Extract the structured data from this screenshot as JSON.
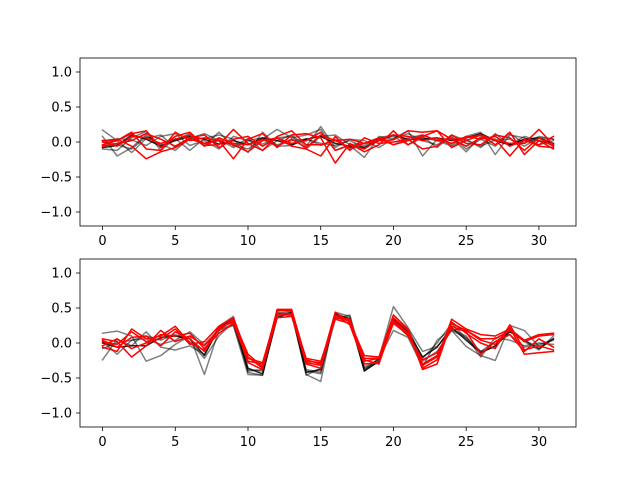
{
  "chart_data": [
    {
      "type": "line",
      "title": "",
      "xlabel": "",
      "ylabel": "",
      "xlim": [
        -1.55,
        32.55
      ],
      "ylim": [
        -1.2,
        1.2
      ],
      "xticks": [
        0,
        5,
        10,
        15,
        20,
        25,
        30
      ],
      "yticks": [
        -1.0,
        -0.5,
        0.0,
        0.5,
        1.0
      ],
      "x": [
        0,
        1,
        2,
        3,
        4,
        5,
        6,
        7,
        8,
        9,
        10,
        11,
        12,
        13,
        14,
        15,
        16,
        17,
        18,
        19,
        20,
        21,
        22,
        23,
        24,
        25,
        26,
        27,
        28,
        29,
        30,
        31
      ],
      "series": [
        {
          "color": "#000000",
          "alpha": 0.5,
          "values": [
            0.17,
            0.02,
            -0.15,
            0.05,
            0.1,
            -0.08,
            0.05,
            0.12,
            0.02,
            -0.04,
            -0.1,
            0.04,
            0.18,
            0.06,
            0.1,
            0.18,
            -0.12,
            -0.05,
            -0.22,
            0.08,
            0.04,
            0.12,
            0.02,
            -0.04,
            0.08,
            -0.1,
            0.04,
            -0.06,
            0.12,
            -0.02,
            0.08,
            0.04
          ]
        },
        {
          "color": "#000000",
          "alpha": 0.5,
          "values": [
            0.08,
            -0.2,
            -0.08,
            0.1,
            -0.05,
            0.03,
            0.12,
            -0.05,
            0.14,
            -0.06,
            0.05,
            -0.12,
            0.02,
            0.1,
            -0.06,
            0.22,
            -0.08,
            0.04,
            0.02,
            -0.08,
            0.05,
            0.16,
            -0.2,
            0.04,
            -0.04,
            0.08,
            0.14,
            -0.18,
            0.1,
            0.06,
            -0.04,
            0.02
          ]
        },
        {
          "color": "#000000",
          "alpha": 0.5,
          "values": [
            -0.1,
            -0.12,
            0.06,
            0.15,
            -0.12,
            0.05,
            -0.12,
            0.05,
            0.1,
            0.04,
            -0.15,
            0.14,
            -0.06,
            -0.05,
            0.05,
            -0.05,
            0.04,
            -0.1,
            -0.05,
            0.04,
            0.08,
            -0.04,
            0.06,
            0.02,
            -0.06,
            0.04,
            -0.08,
            0.12,
            -0.05,
            0.04,
            0.02,
            -0.05
          ]
        },
        {
          "color": "#000000",
          "alpha": 0.5,
          "values": [
            -0.05,
            0.05,
            0.03,
            -0.05,
            0.08,
            0.12,
            -0.05,
            0.02,
            -0.1,
            0.08,
            0.02,
            -0.03,
            0.06,
            0.08,
            -0.1,
            0.08,
            0.1,
            -0.04,
            -0.02,
            0.06,
            0.1,
            0.02,
            0.08,
            -0.08,
            0.1,
            0.02,
            -0.06,
            0.03,
            0.04,
            -0.06,
            0.06,
            0.04
          ]
        },
        {
          "color": "#000000",
          "alpha": 0.5,
          "values": [
            0.02,
            -0.04,
            -0.1,
            0.08,
            -0.03,
            -0.12,
            0.06,
            -0.02,
            0.04,
            -0.08,
            0.02,
            0.06,
            -0.04,
            0.02,
            0.04,
            -0.02,
            -0.05,
            0.02,
            -0.08,
            0.04,
            -0.04,
            0.06,
            0.1,
            0.02,
            0.06,
            -0.14,
            0.08,
            0.02,
            -0.04,
            0.08,
            0.02,
            -0.03
          ]
        },
        {
          "color": "#000000",
          "alpha": 0.85,
          "values": [
            -0.08,
            -0.05,
            0.1,
            0.04,
            -0.06,
            0.02,
            0.08,
            0.04,
            -0.03,
            0.02,
            -0.04,
            0.06,
            0.02,
            -0.04,
            0.04,
            0.08,
            -0.02,
            -0.06,
            -0.08,
            0.02,
            0.1,
            0.04,
            0.04,
            0.06,
            0.02,
            0.06,
            0.12,
            0.02,
            -0.04,
            0.04,
            0.06,
            -0.02
          ]
        },
        {
          "color": "#ff0000",
          "alpha": 1.0,
          "values": [
            0.02,
            0.02,
            0.12,
            0.16,
            -0.08,
            0.08,
            0.14,
            -0.05,
            -0.04,
            0.18,
            -0.02,
            -0.12,
            0.08,
            0.16,
            -0.04,
            -0.04,
            0.02,
            0.04,
            -0.02,
            0.02,
            0.03,
            0.16,
            0.14,
            0.16,
            0.04,
            0.06,
            0.1,
            0.02,
            -0.02,
            -0.02,
            0.18,
            -0.04
          ]
        },
        {
          "color": "#ff0000",
          "alpha": 1.0,
          "values": [
            -0.04,
            0.02,
            0.14,
            -0.1,
            -0.12,
            0.14,
            0.02,
            0.06,
            0.02,
            -0.24,
            0.04,
            0.12,
            -0.08,
            0.1,
            0.12,
            0.06,
            -0.3,
            -0.02,
            -0.14,
            -0.04,
            0.16,
            -0.04,
            0.08,
            0.16,
            -0.08,
            0.02,
            0.1,
            -0.04,
            0.14,
            -0.18,
            0.02,
            -0.1
          ]
        },
        {
          "color": "#ff0000",
          "alpha": 1.0,
          "values": [
            0.02,
            0.04,
            -0.06,
            -0.24,
            -0.14,
            -0.08,
            0.04,
            -0.02,
            0.02,
            -0.04,
            -0.14,
            0.02,
            0.06,
            -0.06,
            -0.1,
            -0.2,
            0.08,
            -0.12,
            0.06,
            -0.02,
            0.0,
            0.04,
            -0.1,
            -0.06,
            0.1,
            -0.02,
            -0.04,
            0.1,
            0.06,
            -0.12,
            0.06,
            -0.06
          ]
        },
        {
          "color": "#ff0000",
          "alpha": 1.0,
          "values": [
            -0.06,
            -0.02,
            0.02,
            0.12,
            0.04,
            -0.06,
            0.06,
            0.1,
            -0.08,
            0.04,
            0.08,
            -0.06,
            0.06,
            -0.02,
            0.02,
            0.14,
            -0.12,
            -0.04,
            -0.1,
            0.04,
            0.1,
            0.08,
            0.02,
            0.06,
            -0.02,
            0.08,
            0.04,
            0.08,
            -0.06,
            0.02,
            -0.04,
            0.08
          ]
        },
        {
          "color": "#ff0000",
          "alpha": 1.0,
          "values": [
            0.0,
            -0.06,
            0.08,
            0.06,
            -0.02,
            0.04,
            0.1,
            -0.06,
            0.06,
            -0.02,
            -0.04,
            0.04,
            -0.06,
            0.04,
            -0.08,
            0.1,
            0.02,
            -0.08,
            -0.02,
            0.06,
            -0.04,
            0.02,
            0.1,
            0.02,
            0.04,
            -0.06,
            0.06,
            0.04,
            -0.2,
            0.04,
            -0.06,
            -0.08
          ]
        }
      ]
    },
    {
      "type": "line",
      "title": "",
      "xlabel": "",
      "ylabel": "",
      "xlim": [
        -1.55,
        32.55
      ],
      "ylim": [
        -1.2,
        1.2
      ],
      "xticks": [
        0,
        5,
        10,
        15,
        20,
        25,
        30
      ],
      "yticks": [
        -1.0,
        -0.5,
        0.0,
        0.5,
        1.0
      ],
      "x": [
        0,
        1,
        2,
        3,
        4,
        5,
        6,
        7,
        8,
        9,
        10,
        11,
        12,
        13,
        14,
        15,
        16,
        17,
        18,
        19,
        20,
        21,
        22,
        23,
        24,
        25,
        26,
        27,
        28,
        29,
        30,
        31
      ],
      "series": [
        {
          "color": "#000000",
          "alpha": 0.5,
          "values": [
            0.14,
            0.17,
            0.1,
            -0.26,
            -0.18,
            -0.02,
            0.1,
            -0.45,
            0.18,
            0.25,
            -0.45,
            -0.46,
            0.42,
            0.45,
            -0.45,
            -0.55,
            0.44,
            0.38,
            -0.4,
            -0.22,
            0.52,
            0.22,
            -0.12,
            -0.05,
            0.18,
            -0.05,
            -0.18,
            -0.25,
            0.25,
            0.18,
            -0.05,
            0.06
          ]
        },
        {
          "color": "#000000",
          "alpha": 0.5,
          "values": [
            -0.24,
            0.05,
            -0.04,
            0.16,
            -0.06,
            -0.1,
            -0.04,
            -0.16,
            0.24,
            0.38,
            -0.42,
            -0.46,
            0.4,
            0.42,
            -0.46,
            -0.36,
            0.4,
            0.36,
            -0.38,
            -0.22,
            0.18,
            0.08,
            -0.34,
            0.04,
            0.2,
            0.1,
            -0.2,
            0.08,
            0.04,
            -0.04,
            0.0,
            -0.02
          ]
        },
        {
          "color": "#000000",
          "alpha": 0.5,
          "values": [
            0.02,
            -0.16,
            0.04,
            0.1,
            0.04,
            0.12,
            0.02,
            -0.22,
            0.1,
            0.3,
            -0.4,
            -0.38,
            0.44,
            0.4,
            -0.38,
            -0.42,
            0.34,
            0.4,
            -0.36,
            -0.28,
            0.4,
            0.2,
            -0.22,
            0.0,
            0.28,
            0.06,
            -0.12,
            -0.06,
            0.2,
            0.02,
            -0.1,
            0.1
          ]
        },
        {
          "color": "#000000",
          "alpha": 0.5,
          "values": [
            -0.08,
            0.0,
            0.04,
            0.06,
            -0.02,
            0.04,
            0.16,
            -0.02,
            0.2,
            0.26,
            -0.38,
            -0.4,
            0.38,
            0.44,
            -0.4,
            -0.44,
            0.4,
            0.3,
            -0.34,
            -0.24,
            0.3,
            0.14,
            -0.26,
            -0.12,
            0.18,
            0.08,
            -0.12,
            0.02,
            0.12,
            -0.06,
            -0.02,
            0.04
          ]
        },
        {
          "color": "#000000",
          "alpha": 0.85,
          "values": [
            0.0,
            -0.06,
            -0.04,
            -0.04,
            0.08,
            0.1,
            0.06,
            -0.18,
            0.22,
            0.34,
            -0.36,
            -0.44,
            0.36,
            0.44,
            -0.42,
            -0.38,
            0.42,
            0.34,
            -0.4,
            -0.26,
            0.34,
            0.16,
            -0.2,
            -0.06,
            0.22,
            0.04,
            -0.14,
            -0.04,
            0.16,
            0.04,
            -0.08,
            0.06
          ]
        },
        {
          "color": "#ff0000",
          "alpha": 1.0,
          "values": [
            0.02,
            -0.02,
            0.16,
            0.02,
            0.06,
            0.2,
            -0.02,
            0.02,
            0.24,
            0.36,
            -0.2,
            -0.36,
            0.48,
            0.48,
            -0.24,
            -0.3,
            0.44,
            0.3,
            -0.18,
            -0.2,
            0.4,
            0.2,
            -0.36,
            -0.24,
            0.34,
            0.2,
            0.12,
            0.1,
            0.2,
            0.04,
            0.12,
            0.14
          ]
        },
        {
          "color": "#ff0000",
          "alpha": 1.0,
          "values": [
            -0.06,
            -0.12,
            0.2,
            0.06,
            0.1,
            0.24,
            0.0,
            -0.1,
            0.22,
            0.3,
            -0.28,
            -0.38,
            0.4,
            0.4,
            -0.3,
            -0.36,
            0.36,
            0.32,
            -0.26,
            -0.22,
            0.32,
            0.14,
            -0.3,
            -0.18,
            0.28,
            0.18,
            0.06,
            0.06,
            0.18,
            0.02,
            0.1,
            0.12
          ]
        },
        {
          "color": "#ff0000",
          "alpha": 1.0,
          "values": [
            0.06,
            0.02,
            -0.2,
            -0.04,
            0.18,
            0.02,
            0.1,
            -0.04,
            0.18,
            0.34,
            -0.26,
            -0.3,
            0.46,
            0.46,
            -0.28,
            -0.32,
            0.4,
            0.26,
            -0.3,
            -0.28,
            0.36,
            0.18,
            -0.38,
            -0.3,
            0.3,
            0.14,
            0.0,
            -0.08,
            0.26,
            -0.1,
            -0.04,
            -0.1
          ]
        },
        {
          "color": "#ff0000",
          "alpha": 1.0,
          "values": [
            -0.04,
            0.06,
            -0.08,
            0.0,
            0.12,
            0.1,
            0.14,
            -0.08,
            0.14,
            0.28,
            -0.22,
            -0.28,
            0.42,
            0.42,
            -0.22,
            -0.26,
            0.34,
            0.28,
            -0.22,
            -0.22,
            0.28,
            0.12,
            -0.32,
            -0.2,
            0.24,
            0.16,
            -0.16,
            0.02,
            0.12,
            -0.12,
            0.06,
            -0.06
          ]
        },
        {
          "color": "#ff0000",
          "alpha": 1.0,
          "values": [
            0.04,
            -0.06,
            0.08,
            0.1,
            -0.04,
            0.16,
            0.06,
            -0.12,
            0.2,
            0.32,
            -0.16,
            -0.34,
            0.36,
            0.38,
            -0.26,
            -0.28,
            0.38,
            0.34,
            -0.24,
            -0.3,
            0.3,
            0.1,
            -0.24,
            -0.14,
            0.2,
            0.18,
            0.04,
            -0.02,
            0.22,
            -0.16,
            -0.14,
            -0.12
          ]
        }
      ]
    }
  ]
}
